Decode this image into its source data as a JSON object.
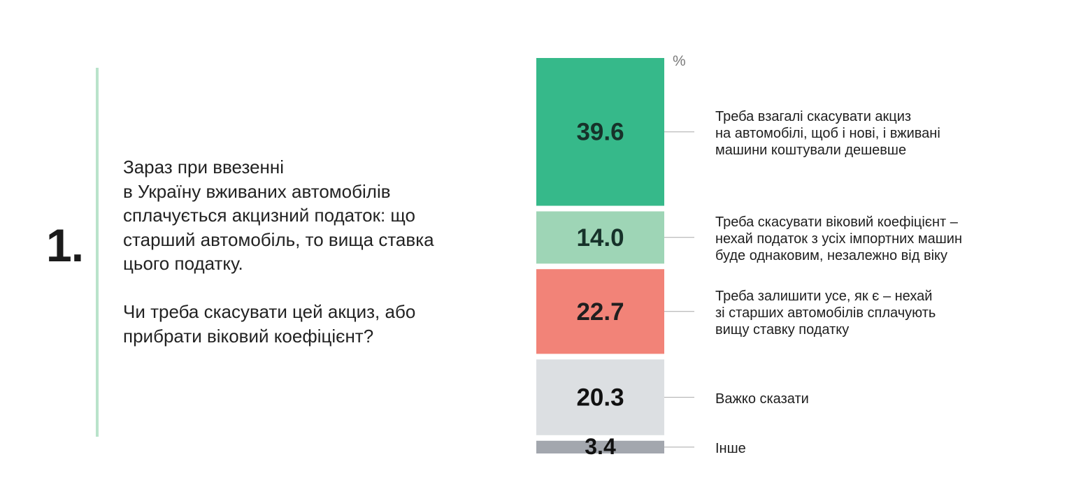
{
  "question": {
    "number": "1.",
    "text": "Зараз при ввезенні\nв Україну вживаних автомобілів\nсплачується акцизний податок: що\nстарший автомобіль, то вища ставка\nцього податку.",
    "prompt": "Чи треба скасувати цей акциз, або\nприбрати віковий коефіцієнт?"
  },
  "chart_data": {
    "type": "bar",
    "orientation": "stacked-vertical",
    "unit": "%",
    "categories": [
      "Треба взагалі скасувати акциз\nна автомобілі, щоб і нові, і вживані\nмашини коштували дешевше",
      "Треба скасувати віковий коефіцієнт –\nнехай податок з усіх імпортних машин\nбуде однаковим, незалежно від віку",
      "Треба залишити усе, як є – нехай\nзі старших автомобілів сплачують\nвищу ставку податку",
      "Важко сказати",
      "Інше"
    ],
    "values": [
      39.6,
      14.0,
      22.7,
      20.3,
      3.4
    ],
    "value_labels": [
      "39.6",
      "14.0",
      "22.7",
      "20.3",
      "3.4"
    ],
    "colors": [
      "#36b98a",
      "#9ed5b6",
      "#f28378",
      "#dcdfe2",
      "#a3a7ae"
    ],
    "value_text_colors": [
      "#17322a",
      "#17322a",
      "#1f1f1f",
      "#111111",
      "#111111"
    ],
    "leader_color": "#a9a9a9"
  }
}
